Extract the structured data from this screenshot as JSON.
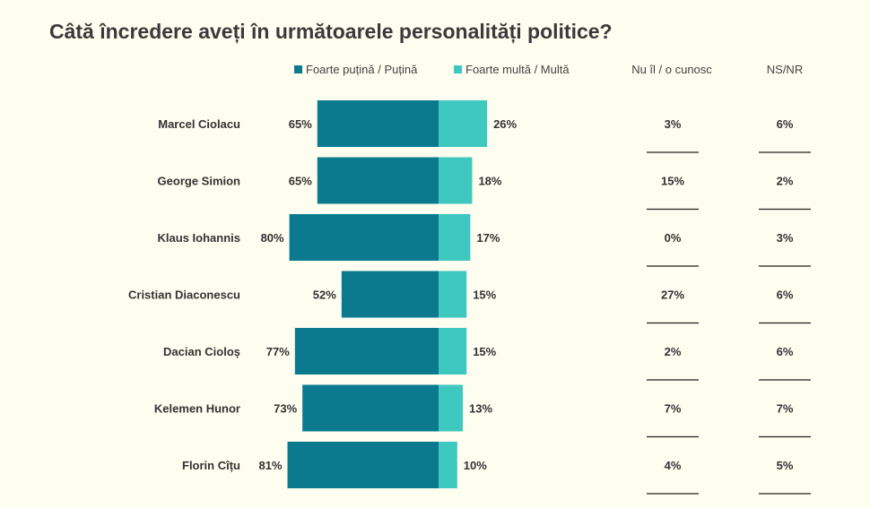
{
  "title": "Câtă încredere aveți în următoarele personalități politice?",
  "legend": {
    "low_label": "Foarte puțină / Puțină",
    "high_label": "Foarte multă / Multă"
  },
  "columns": {
    "unknown_header": "Nu îl / o cunosc",
    "nsnr_header": "NS/NR"
  },
  "colors": {
    "low": "#0b7a8f",
    "high": "#3ec8c0",
    "background": "#fdfdf0"
  },
  "chart_data": {
    "type": "bar",
    "orientation": "diverging-horizontal",
    "title": "Câtă încredere aveți în următoarele personalități politice?",
    "categories": [
      "Marcel Ciolacu",
      "George Simion",
      "Klaus Iohannis",
      "Cristian Diaconescu",
      "Dacian Cioloș",
      "Kelemen Hunor",
      "Florin Cîțu"
    ],
    "series": [
      {
        "name": "Foarte puțină / Puțină",
        "values": [
          65,
          65,
          80,
          52,
          77,
          73,
          81
        ]
      },
      {
        "name": "Foarte multă / Multă",
        "values": [
          26,
          18,
          17,
          15,
          15,
          13,
          10
        ]
      }
    ],
    "unknown": [
      3,
      15,
      0,
      27,
      2,
      7,
      4
    ],
    "nsnr": [
      6,
      2,
      3,
      6,
      6,
      7,
      5
    ],
    "unit": "%",
    "legend_position": "top"
  }
}
